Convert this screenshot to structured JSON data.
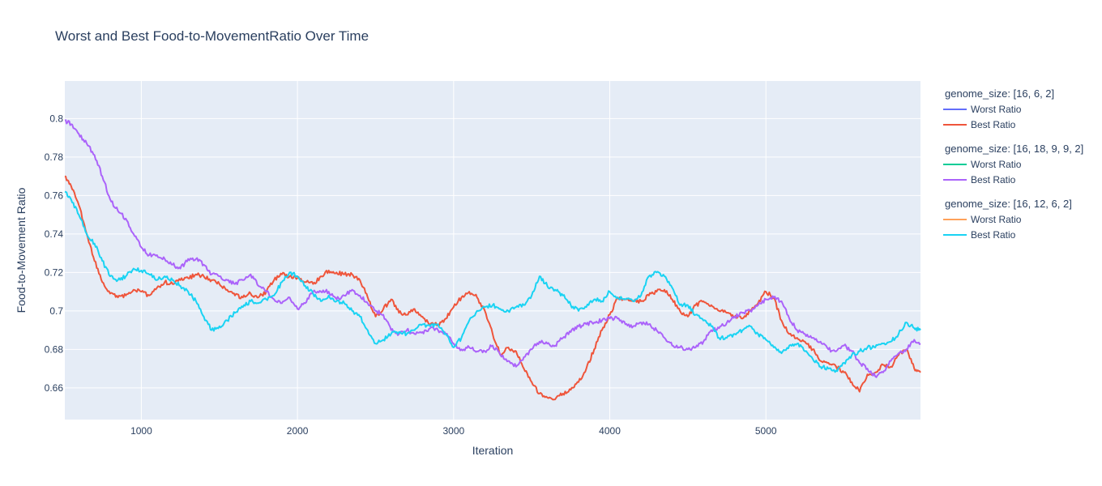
{
  "chart_data": {
    "type": "line",
    "title": "Worst and Best Food-to-MovementRatio Over Time",
    "xlabel": "Iteration",
    "ylabel": "Food-to-Movement Ratio",
    "xlim": [
      510,
      5990
    ],
    "ylim": [
      0.6435,
      0.8195
    ],
    "x_ticks": [
      1000,
      2000,
      3000,
      4000,
      5000
    ],
    "x_tick_labels": [
      "1000",
      "2000",
      "3000",
      "4000",
      "5000"
    ],
    "y_ticks": [
      0.66,
      0.68,
      0.7,
      0.72,
      0.74,
      0.76,
      0.78,
      0.8
    ],
    "y_tick_labels": [
      "0.66",
      "0.68",
      "0.7",
      "0.72",
      "0.74",
      "0.76",
      "0.78",
      "0.8"
    ],
    "grid": true,
    "legend_position": "right",
    "legend_groups": [
      {
        "title": "genome_size: [16, 6, 2]",
        "items": [
          {
            "label": "Worst Ratio",
            "color": "#636efa"
          },
          {
            "label": "Best Ratio",
            "color": "#EF553B"
          }
        ]
      },
      {
        "title": "genome_size: [16, 18, 9, 9, 2]",
        "items": [
          {
            "label": "Worst Ratio",
            "color": "#00cc96"
          },
          {
            "label": "Best Ratio",
            "color": "#ab63fa"
          }
        ]
      },
      {
        "title": "genome_size: [16, 12, 6, 2]",
        "items": [
          {
            "label": "Worst Ratio",
            "color": "#FFA15A"
          },
          {
            "label": "Best Ratio",
            "color": "#19d3f3"
          }
        ]
      }
    ],
    "series": [
      {
        "name": "Best Ratio",
        "group": "genome_size: [16, 6, 2]",
        "color": "#EF553B",
        "x": [
          510,
          550,
          600,
          650,
          700,
          750,
          800,
          850,
          900,
          950,
          1000,
          1050,
          1100,
          1150,
          1200,
          1250,
          1300,
          1350,
          1400,
          1450,
          1500,
          1550,
          1600,
          1650,
          1700,
          1750,
          1800,
          1850,
          1900,
          1950,
          2000,
          2050,
          2100,
          2150,
          2200,
          2250,
          2300,
          2350,
          2400,
          2450,
          2500,
          2550,
          2600,
          2650,
          2700,
          2750,
          2800,
          2850,
          2900,
          2950,
          3000,
          3050,
          3100,
          3150,
          3200,
          3250,
          3300,
          3350,
          3400,
          3450,
          3500,
          3550,
          3600,
          3650,
          3700,
          3750,
          3800,
          3850,
          3900,
          3950,
          4000,
          4050,
          4100,
          4150,
          4200,
          4250,
          4300,
          4350,
          4400,
          4450,
          4500,
          4550,
          4600,
          4650,
          4700,
          4750,
          4800,
          4850,
          4900,
          4950,
          5000,
          5050,
          5100,
          5150,
          5200,
          5250,
          5300,
          5350,
          5400,
          5450,
          5500,
          5550,
          5600,
          5650,
          5700,
          5750,
          5800,
          5850,
          5900,
          5950,
          5990
        ],
        "y": [
          0.77,
          0.765,
          0.755,
          0.74,
          0.726,
          0.715,
          0.709,
          0.707,
          0.708,
          0.711,
          0.71,
          0.708,
          0.712,
          0.715,
          0.714,
          0.716,
          0.717,
          0.719,
          0.718,
          0.716,
          0.714,
          0.711,
          0.708,
          0.707,
          0.709,
          0.707,
          0.71,
          0.716,
          0.719,
          0.718,
          0.717,
          0.715,
          0.714,
          0.718,
          0.721,
          0.72,
          0.719,
          0.719,
          0.716,
          0.707,
          0.697,
          0.701,
          0.706,
          0.699,
          0.698,
          0.701,
          0.697,
          0.693,
          0.693,
          0.696,
          0.702,
          0.707,
          0.71,
          0.707,
          0.7,
          0.688,
          0.677,
          0.681,
          0.679,
          0.67,
          0.663,
          0.657,
          0.655,
          0.654,
          0.657,
          0.659,
          0.663,
          0.67,
          0.68,
          0.69,
          0.698,
          0.707,
          0.706,
          0.705,
          0.705,
          0.708,
          0.71,
          0.711,
          0.706,
          0.7,
          0.697,
          0.703,
          0.705,
          0.703,
          0.7,
          0.699,
          0.697,
          0.696,
          0.7,
          0.704,
          0.71,
          0.707,
          0.695,
          0.688,
          0.686,
          0.684,
          0.68,
          0.674,
          0.673,
          0.671,
          0.668,
          0.663,
          0.658,
          0.667,
          0.668,
          0.672,
          0.671,
          0.677,
          0.68,
          0.67,
          0.668
        ]
      },
      {
        "name": "Best Ratio",
        "group": "genome_size: [16, 18, 9, 9, 2]",
        "color": "#ab63fa",
        "x": [
          510,
          550,
          600,
          650,
          700,
          750,
          800,
          850,
          900,
          950,
          1000,
          1050,
          1100,
          1150,
          1200,
          1250,
          1300,
          1350,
          1400,
          1450,
          1500,
          1550,
          1600,
          1650,
          1700,
          1750,
          1800,
          1850,
          1900,
          1950,
          2000,
          2050,
          2100,
          2150,
          2200,
          2250,
          2300,
          2350,
          2400,
          2450,
          2500,
          2550,
          2600,
          2650,
          2700,
          2750,
          2800,
          2850,
          2900,
          2950,
          3000,
          3050,
          3100,
          3150,
          3200,
          3250,
          3300,
          3350,
          3400,
          3450,
          3500,
          3550,
          3600,
          3650,
          3700,
          3750,
          3800,
          3850,
          3900,
          3950,
          4000,
          4050,
          4100,
          4150,
          4200,
          4250,
          4300,
          4350,
          4400,
          4450,
          4500,
          4550,
          4600,
          4650,
          4700,
          4750,
          4800,
          4850,
          4900,
          4950,
          5000,
          5050,
          5100,
          5150,
          5200,
          5250,
          5300,
          5350,
          5400,
          5450,
          5500,
          5550,
          5600,
          5650,
          5700,
          5750,
          5800,
          5850,
          5900,
          5950,
          5990
        ],
        "y": [
          0.799,
          0.797,
          0.792,
          0.787,
          0.781,
          0.77,
          0.758,
          0.752,
          0.748,
          0.74,
          0.733,
          0.729,
          0.729,
          0.727,
          0.724,
          0.722,
          0.727,
          0.727,
          0.724,
          0.719,
          0.718,
          0.716,
          0.714,
          0.716,
          0.719,
          0.713,
          0.71,
          0.706,
          0.704,
          0.707,
          0.701,
          0.704,
          0.71,
          0.71,
          0.71,
          0.706,
          0.708,
          0.711,
          0.708,
          0.704,
          0.7,
          0.698,
          0.69,
          0.688,
          0.69,
          0.688,
          0.689,
          0.691,
          0.69,
          0.688,
          0.683,
          0.68,
          0.681,
          0.679,
          0.679,
          0.682,
          0.677,
          0.674,
          0.671,
          0.676,
          0.68,
          0.684,
          0.683,
          0.682,
          0.686,
          0.689,
          0.692,
          0.693,
          0.694,
          0.695,
          0.696,
          0.696,
          0.693,
          0.692,
          0.694,
          0.693,
          0.69,
          0.686,
          0.682,
          0.681,
          0.68,
          0.681,
          0.684,
          0.69,
          0.691,
          0.694,
          0.697,
          0.699,
          0.7,
          0.703,
          0.706,
          0.707,
          0.705,
          0.696,
          0.69,
          0.688,
          0.686,
          0.684,
          0.68,
          0.679,
          0.682,
          0.679,
          0.673,
          0.67,
          0.666,
          0.668,
          0.674,
          0.678,
          0.68,
          0.685,
          0.683
        ]
      },
      {
        "name": "Best Ratio",
        "group": "genome_size: [16, 12, 6, 2]",
        "color": "#19d3f3",
        "x": [
          510,
          550,
          600,
          650,
          700,
          750,
          800,
          850,
          900,
          950,
          1000,
          1050,
          1100,
          1150,
          1200,
          1250,
          1300,
          1350,
          1400,
          1450,
          1500,
          1550,
          1600,
          1650,
          1700,
          1750,
          1800,
          1850,
          1900,
          1950,
          2000,
          2050,
          2100,
          2150,
          2200,
          2250,
          2300,
          2350,
          2400,
          2450,
          2500,
          2550,
          2600,
          2650,
          2700,
          2750,
          2800,
          2850,
          2900,
          2950,
          3000,
          3050,
          3100,
          3150,
          3200,
          3250,
          3300,
          3350,
          3400,
          3450,
          3500,
          3550,
          3600,
          3650,
          3700,
          3750,
          3800,
          3850,
          3900,
          3950,
          4000,
          4050,
          4100,
          4150,
          4200,
          4250,
          4300,
          4350,
          4400,
          4450,
          4500,
          4550,
          4600,
          4650,
          4700,
          4750,
          4800,
          4850,
          4900,
          4950,
          5000,
          5050,
          5100,
          5150,
          5200,
          5250,
          5300,
          5350,
          5400,
          5450,
          5500,
          5550,
          5600,
          5650,
          5700,
          5750,
          5800,
          5850,
          5900,
          5950,
          5990
        ],
        "y": [
          0.762,
          0.758,
          0.75,
          0.74,
          0.735,
          0.726,
          0.718,
          0.716,
          0.718,
          0.722,
          0.721,
          0.719,
          0.716,
          0.718,
          0.716,
          0.713,
          0.71,
          0.705,
          0.697,
          0.69,
          0.692,
          0.695,
          0.699,
          0.702,
          0.705,
          0.704,
          0.706,
          0.708,
          0.715,
          0.72,
          0.718,
          0.713,
          0.709,
          0.705,
          0.708,
          0.705,
          0.704,
          0.7,
          0.697,
          0.69,
          0.683,
          0.685,
          0.688,
          0.689,
          0.688,
          0.69,
          0.693,
          0.692,
          0.693,
          0.688,
          0.681,
          0.686,
          0.695,
          0.7,
          0.702,
          0.703,
          0.701,
          0.7,
          0.702,
          0.703,
          0.708,
          0.718,
          0.713,
          0.711,
          0.708,
          0.703,
          0.7,
          0.702,
          0.706,
          0.705,
          0.71,
          0.707,
          0.706,
          0.705,
          0.708,
          0.718,
          0.72,
          0.718,
          0.712,
          0.703,
          0.703,
          0.698,
          0.695,
          0.692,
          0.686,
          0.686,
          0.688,
          0.69,
          0.692,
          0.688,
          0.685,
          0.681,
          0.678,
          0.682,
          0.683,
          0.679,
          0.675,
          0.671,
          0.67,
          0.669,
          0.673,
          0.677,
          0.679,
          0.681,
          0.681,
          0.683,
          0.684,
          0.688,
          0.694,
          0.691,
          0.69
        ]
      }
    ]
  }
}
